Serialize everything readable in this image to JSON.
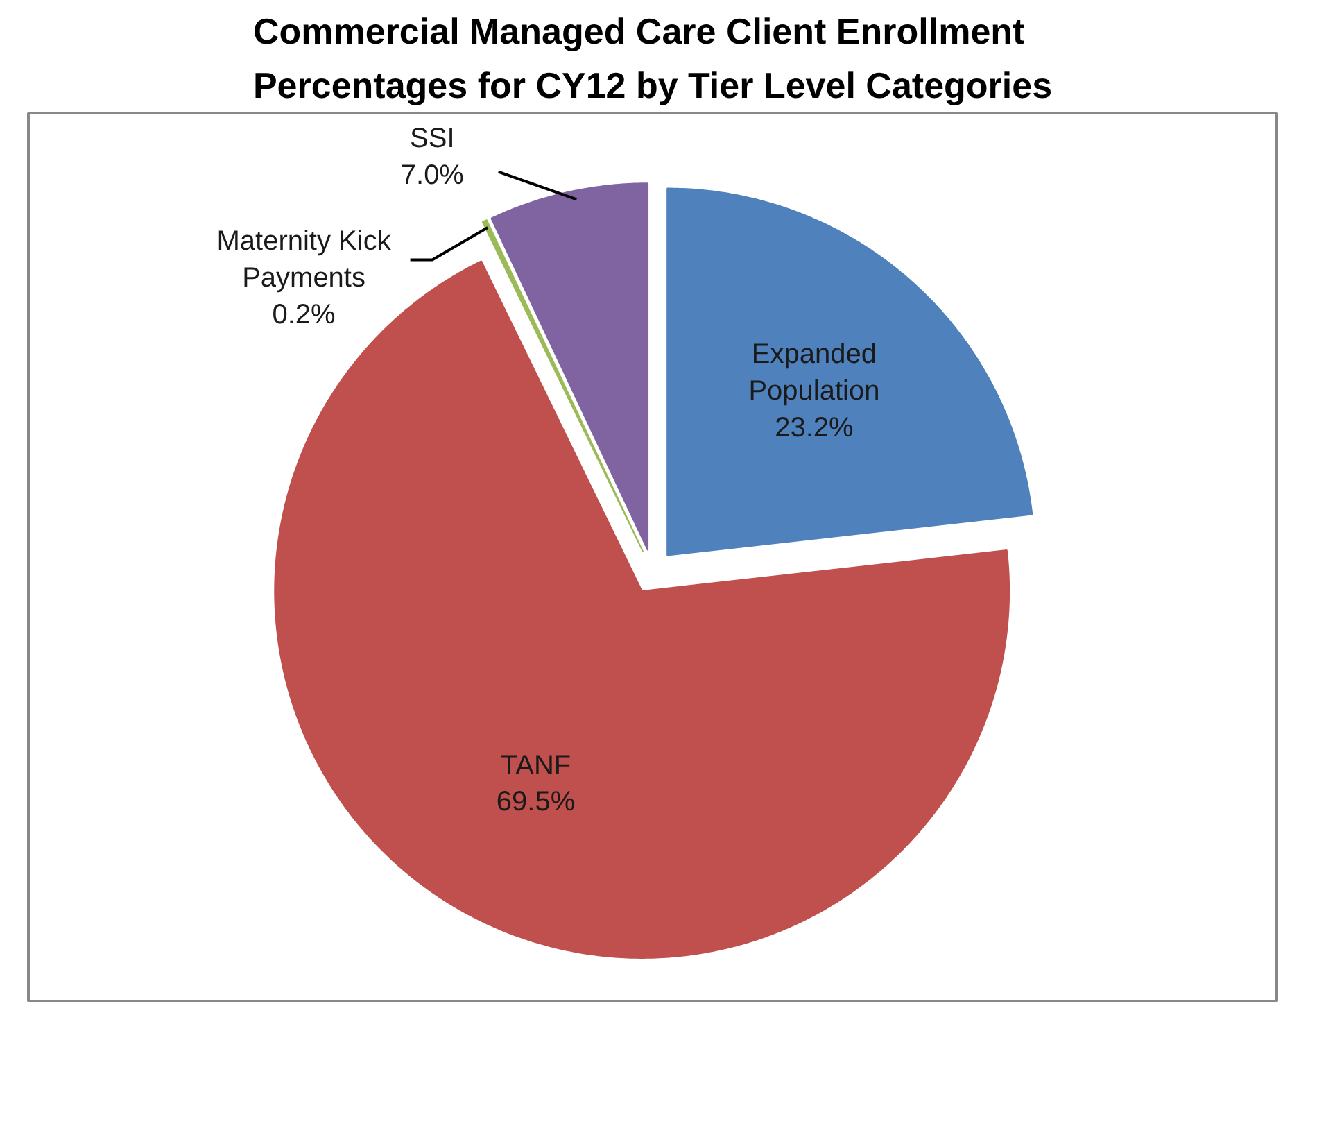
{
  "chart_data": {
    "type": "pie",
    "title": "Commercial Managed Care Client Enrollment\nPercentages for CY12 by Tier Level Categories",
    "categories": [
      "Expanded\nPopulation",
      "TANF",
      "Maternity Kick\nPayments",
      "SSI"
    ],
    "values": [
      23.2,
      69.5,
      0.2,
      7.0
    ],
    "colors": [
      "#4f81bd",
      "#c0504d",
      "#9bbb59",
      "#8064a2"
    ],
    "value_labels": [
      "23.2%",
      "69.5%",
      "0.2%",
      "7.0%"
    ],
    "legend": false
  }
}
